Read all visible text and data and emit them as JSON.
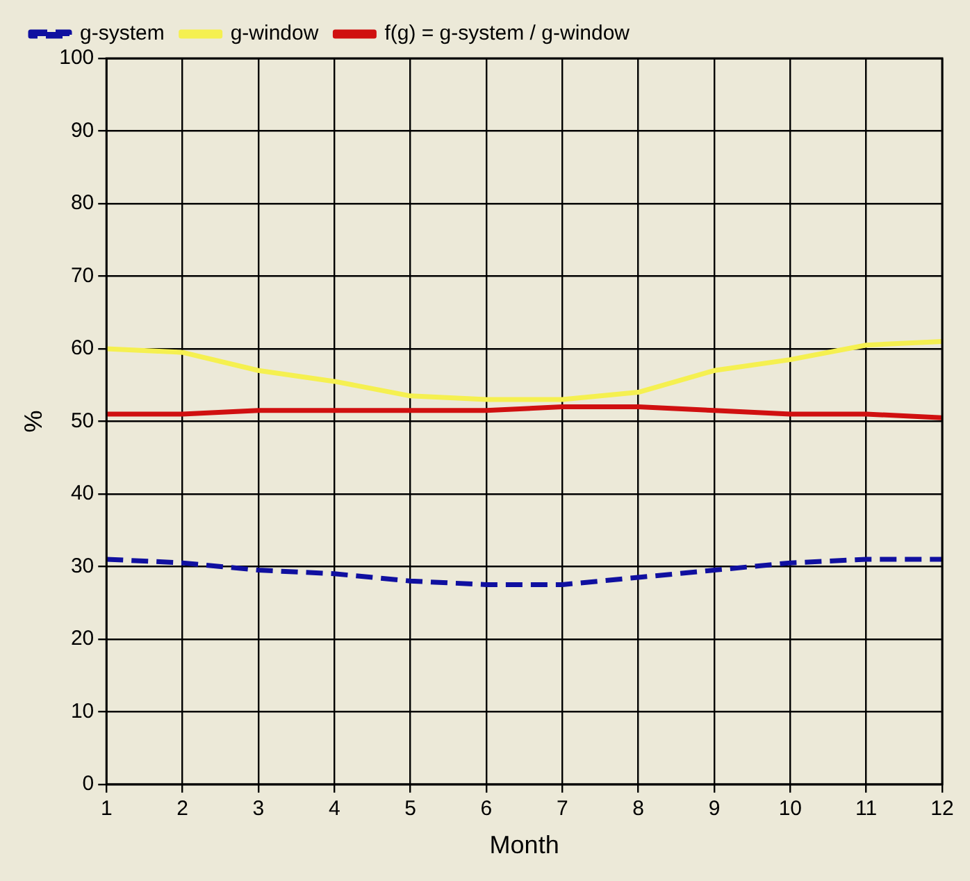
{
  "chart_data": {
    "type": "line",
    "xlabel": "Month",
    "ylabel": "%",
    "x": [
      1,
      2,
      3,
      4,
      5,
      6,
      7,
      8,
      9,
      10,
      11,
      12
    ],
    "series": [
      {
        "name": "g-system",
        "color": "#1010a0",
        "line_style": "dashed",
        "values": [
          31,
          30.5,
          29.5,
          29,
          28,
          27.5,
          27.5,
          28.5,
          29.5,
          30.5,
          31,
          31
        ]
      },
      {
        "name": "g-window",
        "color": "#f5f050",
        "line_style": "solid",
        "values": [
          60,
          59.5,
          57,
          55.5,
          53.5,
          53,
          53,
          54,
          57,
          58.5,
          60.5,
          61
        ]
      },
      {
        "name": "f(g) = g-system / g-window",
        "color": "#d01010",
        "line_style": "solid",
        "values": [
          51,
          51,
          51.5,
          51.5,
          51.5,
          51.5,
          52,
          52,
          51.5,
          51,
          51,
          50.5
        ]
      }
    ],
    "xlim": [
      1,
      12
    ],
    "xticks": [
      1,
      2,
      3,
      4,
      5,
      6,
      7,
      8,
      9,
      10,
      11,
      12
    ],
    "ylim": [
      0,
      100
    ],
    "yticks": [
      0,
      10,
      20,
      30,
      40,
      50,
      60,
      70,
      80,
      90,
      100
    ],
    "grid": true,
    "legend": "top left",
    "marker": "none"
  }
}
